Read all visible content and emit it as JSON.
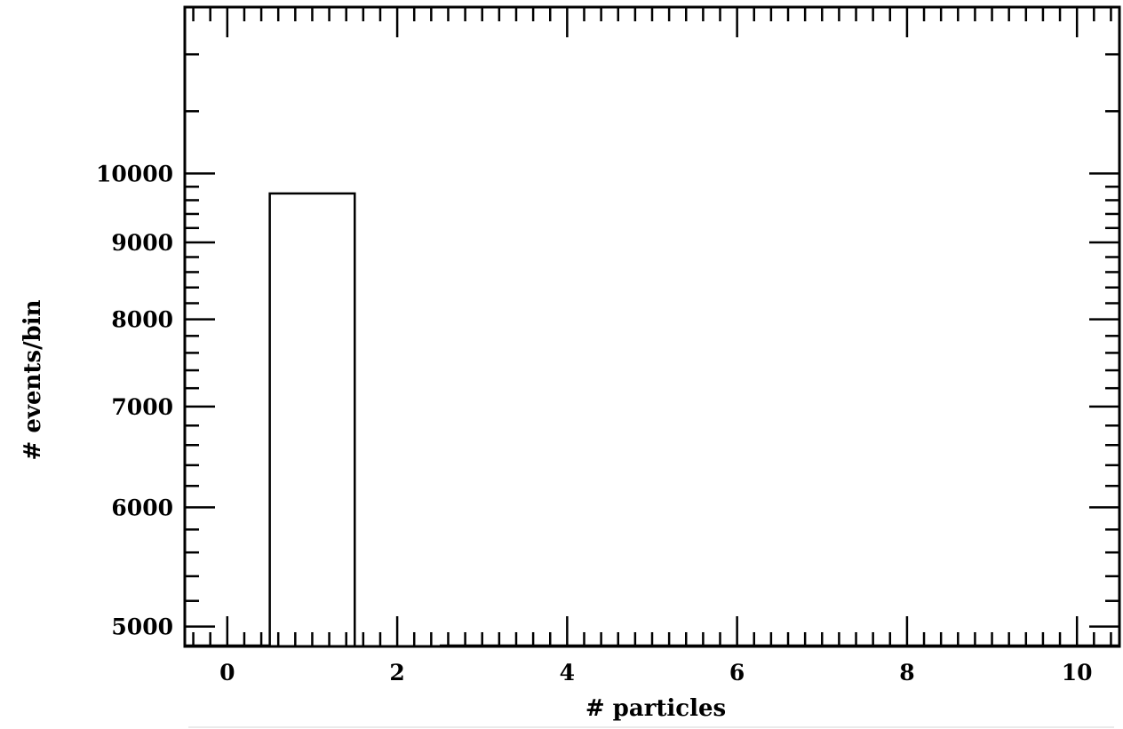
{
  "chart_data": {
    "type": "bar",
    "style": "histogram-step",
    "xlabel": "# particles",
    "ylabel": "# events/bin",
    "xlim": [
      -0.5,
      10.5
    ],
    "ylim": [
      4850,
      12900
    ],
    "yscale": "log",
    "x_major_ticks": [
      0,
      2,
      4,
      6,
      8,
      10
    ],
    "x_minor_ticks": [
      -0.4,
      -0.2,
      0.2,
      0.4,
      0.6,
      0.8,
      1,
      1.2,
      1.4,
      1.6,
      1.8,
      2.2,
      2.4,
      2.6,
      2.8,
      3,
      3.2,
      3.4,
      3.6,
      3.8,
      4.2,
      4.4,
      4.6,
      4.8,
      5,
      5.2,
      5.4,
      5.6,
      5.8,
      6.2,
      6.4,
      6.6,
      6.8,
      7,
      7.2,
      7.4,
      7.6,
      7.8,
      8.2,
      8.4,
      8.6,
      8.8,
      9,
      9.2,
      9.4,
      9.6,
      9.8,
      10.2,
      10.4
    ],
    "y_major_ticks": [
      5000,
      6000,
      7000,
      8000,
      9000,
      10000
    ],
    "y_minor_ticks": [
      5200,
      5400,
      5600,
      5800,
      6200,
      6400,
      6600,
      6800,
      7200,
      7400,
      7600,
      7800,
      8200,
      8400,
      8600,
      8800,
      9200,
      9400,
      9600,
      9800
    ],
    "bins": [
      {
        "low": 0.5,
        "high": 1.5,
        "value": 9700
      }
    ],
    "baseline_segments": [
      [
        -0.5,
        0.5
      ],
      [
        2.5,
        10.5
      ]
    ],
    "grid": false,
    "legend": "none"
  }
}
